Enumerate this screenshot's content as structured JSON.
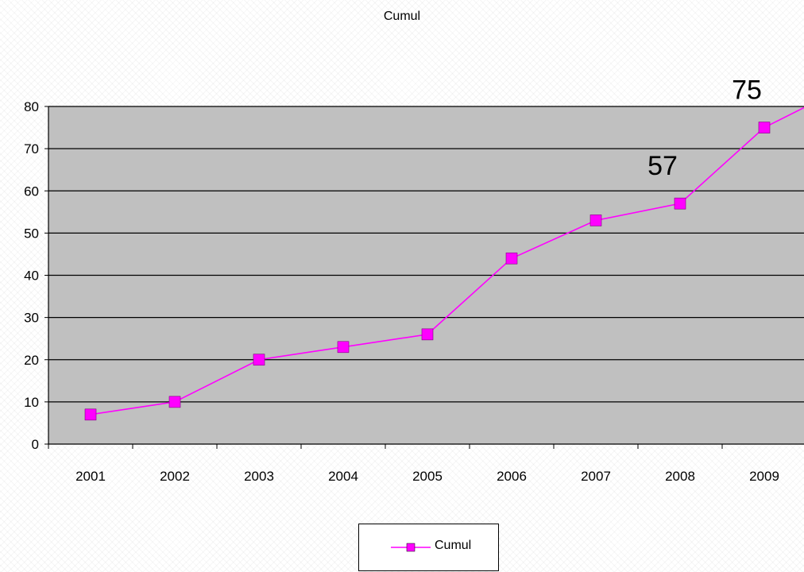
{
  "chart_data": {
    "type": "line",
    "title": "Cumul",
    "xlabel": "",
    "ylabel": "",
    "categories": [
      "2001",
      "2002",
      "2003",
      "2004",
      "2005",
      "2006",
      "2007",
      "2008",
      "2009"
    ],
    "series": [
      {
        "name": "Cumul",
        "values": [
          7,
          10,
          20,
          23,
          26,
          44,
          53,
          57,
          75
        ],
        "trailing_value": 85,
        "color": "#ff00ff",
        "marker": "square"
      }
    ],
    "ylim": [
      0,
      80
    ],
    "yticks": [
      0,
      10,
      20,
      30,
      40,
      50,
      60,
      70,
      80
    ],
    "grid": true,
    "plot_background": "#c0c0c0",
    "legend_position": "bottom",
    "data_labels": [
      {
        "category": "2008",
        "text": "57"
      },
      {
        "category": "2009",
        "text": "75"
      }
    ]
  }
}
